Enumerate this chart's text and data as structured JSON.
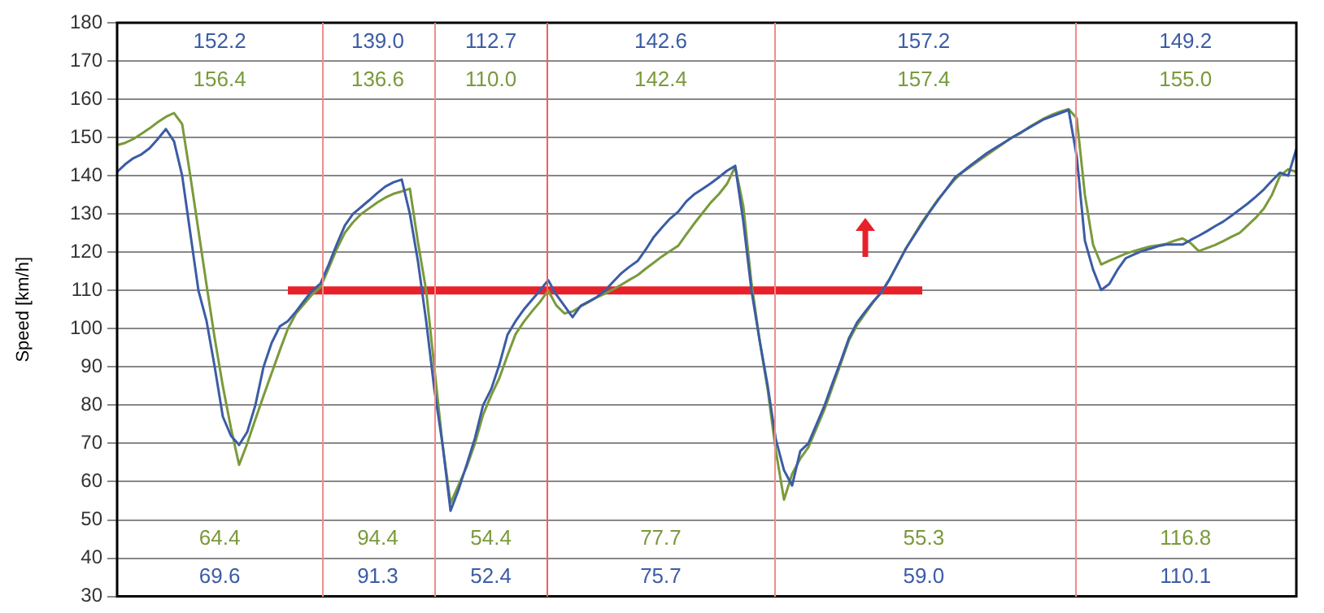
{
  "chart_data": {
    "type": "line",
    "ylabel": "Speed [km/h]",
    "ylim": [
      30,
      180
    ],
    "yticks": [
      30,
      40,
      50,
      60,
      70,
      80,
      90,
      100,
      110,
      120,
      130,
      140,
      150,
      160,
      170,
      180
    ],
    "tick_labels": "y",
    "grid": "y",
    "marker": "none",
    "line_style": "solid",
    "categories": [
      null,
      null,
      null,
      null,
      null,
      null,
      null,
      null,
      null,
      null,
      null,
      null,
      null,
      null,
      null,
      null,
      null,
      null,
      null,
      null,
      null,
      null,
      null,
      null,
      null,
      null,
      null,
      null,
      null,
      null,
      null,
      null,
      null,
      null,
      null,
      null,
      null,
      null,
      null,
      null,
      null,
      null,
      null,
      null,
      null,
      null,
      null,
      null,
      null,
      null,
      null,
      null,
      null,
      null,
      null,
      null,
      null,
      null,
      null,
      null,
      null,
      null,
      null,
      null,
      null,
      null,
      null,
      null,
      null,
      null,
      null,
      null,
      null,
      null,
      null,
      null,
      null,
      null,
      null,
      null,
      null,
      null,
      null,
      null,
      null,
      null,
      null,
      null,
      null,
      null,
      null,
      null,
      null,
      null,
      null,
      null,
      null,
      null,
      null,
      null,
      null,
      null,
      null,
      null,
      null,
      null,
      null,
      null,
      null,
      null,
      null,
      null,
      null,
      null,
      null,
      null,
      null,
      null,
      null,
      null,
      null,
      null,
      null,
      null,
      null,
      null,
      null,
      null,
      null,
      null,
      null,
      null,
      null,
      null,
      null,
      null,
      null,
      null,
      null,
      null,
      null,
      null,
      null,
      null,
      null,
      null
    ],
    "series": [
      {
        "color": "#3b5ca6",
        "values": [
          141,
          143,
          144.6,
          145.6,
          147.2,
          149.6,
          152.2,
          149,
          140,
          125,
          110,
          102,
          90,
          77,
          72,
          69.6,
          73,
          80,
          90,
          96.3,
          100.6,
          102,
          104.5,
          107.3,
          110,
          111.8,
          116.7,
          122,
          127,
          130,
          131.8,
          133.6,
          135.5,
          137.2,
          138.3,
          139,
          130,
          117.5,
          102,
          84.3,
          70,
          52.4,
          58,
          64.6,
          71.4,
          80,
          84.2,
          90.6,
          98.4,
          102,
          105,
          107.5,
          110,
          112.7,
          108.9,
          106,
          103,
          106,
          107.1,
          108.3,
          110,
          112.3,
          114.5,
          116.2,
          117.7,
          120.7,
          124,
          126.5,
          128.8,
          130.6,
          133.3,
          135.2,
          136.6,
          138,
          139.6,
          141.3,
          142.6,
          128,
          110,
          97,
          85,
          71,
          63,
          59,
          68,
          70,
          75,
          80,
          86,
          91.6,
          97.6,
          101.7,
          104.5,
          107.2,
          109.6,
          113,
          117,
          121,
          124.3,
          127.6,
          130.8,
          133.8,
          136.6,
          139.5,
          141.1,
          142.8,
          144.4,
          146,
          147.3,
          148.6,
          149.9,
          151.2,
          152.4,
          153.6,
          154.8,
          155.6,
          156.4,
          157.2,
          145,
          123,
          115.5,
          110.1,
          111.7,
          115.4,
          118.4,
          119.4,
          120.3,
          120.9,
          121.6,
          122,
          122,
          122,
          123.2,
          124.3,
          125.5,
          126.8,
          128,
          129.5,
          131.1,
          132.7,
          134.5,
          136.4,
          138.7,
          140.8,
          140,
          147
        ]
      },
      {
        "color": "#7a9a3c",
        "values": [
          148,
          148.6,
          149.6,
          151,
          152.4,
          154,
          155.4,
          156.4,
          153.5,
          140,
          125.7,
          111.4,
          97.5,
          85,
          74,
          64.4,
          70,
          76.3,
          82.4,
          88.4,
          94.3,
          100,
          104,
          106.5,
          109,
          110.8,
          115.7,
          120.8,
          125.1,
          127.8,
          130,
          131.5,
          133,
          134.3,
          135.3,
          135.9,
          136.6,
          122.5,
          110,
          90,
          70,
          54.4,
          59.2,
          64,
          70,
          77.5,
          82.6,
          87.1,
          93,
          98.6,
          101.8,
          104.5,
          107,
          110,
          106.1,
          104,
          104.5,
          105.8,
          107,
          108.2,
          109.2,
          110.3,
          111.5,
          112.8,
          114,
          115.7,
          117.3,
          118.9,
          120.3,
          121.7,
          124.7,
          127.6,
          130.3,
          133,
          135.2,
          137.9,
          142.4,
          132,
          112,
          97,
          84,
          68,
          55.3,
          62,
          66,
          69,
          74,
          79,
          85,
          91,
          97,
          101,
          104,
          107,
          109.5,
          113,
          117,
          121,
          124.5,
          128,
          131,
          134,
          136.5,
          139,
          141,
          142.5,
          144,
          145.5,
          147,
          148.5,
          150,
          151,
          152.5,
          153.8,
          155,
          156,
          156.8,
          157.4,
          155,
          135,
          122,
          116.8,
          117.8,
          118.7,
          119.6,
          120.3,
          120.9,
          121.5,
          121.8,
          122.2,
          123,
          123.6,
          122.4,
          120.3,
          121.1,
          121.9,
          122.9,
          124,
          125,
          127,
          129,
          131.4,
          135,
          140,
          141.7,
          141
        ]
      },
      {
        "color": "#e8202a",
        "values": [
          null,
          null,
          null,
          null,
          null,
          null,
          null,
          null,
          null,
          null,
          null,
          null,
          null,
          null,
          null,
          null,
          null,
          null,
          null,
          null,
          null,
          110,
          110,
          110,
          110,
          110,
          110,
          110,
          110,
          110,
          110,
          110,
          110,
          110,
          110,
          110,
          110,
          110,
          110,
          110,
          110,
          110,
          110,
          110,
          110,
          110,
          110,
          110,
          110,
          110,
          110,
          110,
          110,
          110,
          110,
          110,
          110,
          110,
          110,
          110,
          110,
          110,
          110,
          110,
          110,
          110,
          110,
          110,
          110,
          110,
          110,
          110,
          110,
          110,
          110,
          110,
          110,
          110,
          110,
          110,
          110,
          110,
          110,
          110,
          110,
          110,
          110,
          110,
          110,
          110,
          110,
          110,
          110,
          110,
          110,
          110,
          110,
          110,
          110,
          110,
          null,
          null,
          null,
          null,
          null,
          null,
          null,
          null,
          null,
          null,
          null,
          null,
          null,
          null,
          null,
          null,
          null,
          null,
          null,
          null,
          null,
          null,
          null,
          null,
          null,
          null,
          null,
          null,
          null,
          null,
          null,
          null,
          null,
          null,
          null,
          null,
          null,
          null,
          null,
          null,
          null,
          null,
          null,
          null,
          null,
          null
        ]
      }
    ],
    "annotations": [
      "152.2",
      "139.0",
      "112.7",
      "142.6",
      "157.2",
      "149.2",
      "156.4",
      "136.6",
      "110.0",
      "142.4",
      "157.4",
      "155.0",
      "64.4",
      "94.4",
      "54.4",
      "77.7",
      "55.3",
      "116.8",
      "69.6",
      "91.3",
      "52.4",
      "75.7",
      "59.0",
      "110.1"
    ]
  }
}
